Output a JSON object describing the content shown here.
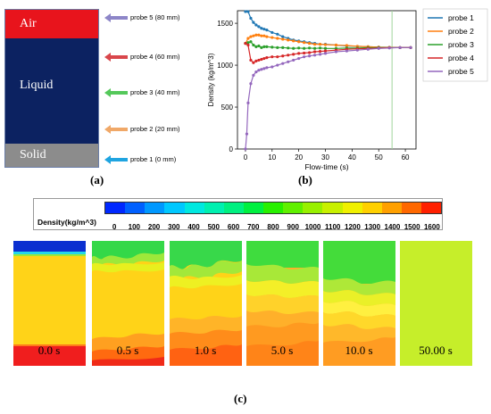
{
  "panel_a": {
    "layers": [
      {
        "name": "Air",
        "color": "#e8141c"
      },
      {
        "name": "Liquid",
        "color": "#0c2261"
      },
      {
        "name": "Solid",
        "color": "#8c8c8c"
      }
    ],
    "probes": [
      {
        "label": "probe 5 (80 mm)",
        "color": "#8d86c8"
      },
      {
        "label": "probe 4 (60 mm)",
        "color": "#d9464b"
      },
      {
        "label": "probe 3 (40 mm)",
        "color": "#54c85a"
      },
      {
        "label": "probe 2 (20 mm)",
        "color": "#f0a868"
      },
      {
        "label": "probe 1 (0 mm)",
        "color": "#1fa4e0"
      }
    ],
    "caption": "(a)"
  },
  "chart_data": {
    "type": "line",
    "xlabel": "Flow-time (s)",
    "ylabel": "Density (kg/m^3)",
    "xlim": [
      -3,
      64
    ],
    "ylim": [
      0,
      1650
    ],
    "xticks": [
      0,
      10,
      20,
      30,
      40,
      50,
      60
    ],
    "yticks": [
      0,
      500,
      1000,
      1500
    ],
    "vline_x": 55,
    "vline_color": "#9fd49a",
    "legend_placement": "right",
    "series": [
      {
        "name": "probe 1",
        "color": "#1f77b4",
        "x": [
          0,
          1,
          2,
          3,
          4,
          5,
          6,
          7,
          8,
          10,
          12,
          14,
          16,
          18,
          20,
          22,
          24,
          26,
          28,
          30,
          34,
          38,
          42,
          46,
          50,
          54,
          58,
          62
        ],
        "y": [
          1640,
          1640,
          1560,
          1510,
          1480,
          1460,
          1440,
          1430,
          1420,
          1390,
          1370,
          1340,
          1320,
          1300,
          1290,
          1280,
          1270,
          1260,
          1250,
          1250,
          1240,
          1230,
          1225,
          1220,
          1215,
          1212,
          1210,
          1210
        ]
      },
      {
        "name": "probe 2",
        "color": "#ff7f0e",
        "x": [
          0,
          1,
          2,
          3,
          4,
          5,
          6,
          7,
          8,
          10,
          12,
          14,
          16,
          18,
          20,
          22,
          24,
          26,
          28,
          30,
          34,
          38,
          42,
          46,
          50,
          54,
          58,
          62
        ],
        "y": [
          1260,
          1320,
          1340,
          1350,
          1360,
          1360,
          1350,
          1350,
          1340,
          1330,
          1320,
          1310,
          1300,
          1290,
          1280,
          1270,
          1260,
          1250,
          1250,
          1245,
          1240,
          1235,
          1225,
          1220,
          1215,
          1212,
          1210,
          1210
        ]
      },
      {
        "name": "probe 3",
        "color": "#2ca02c",
        "x": [
          0,
          1,
          2,
          3,
          4,
          5,
          6,
          7,
          8,
          10,
          12,
          14,
          16,
          18,
          20,
          22,
          24,
          26,
          28,
          30,
          34,
          38,
          42,
          46,
          50,
          54,
          58,
          62
        ],
        "y": [
          1260,
          1270,
          1280,
          1240,
          1220,
          1230,
          1210,
          1220,
          1220,
          1215,
          1210,
          1210,
          1205,
          1200,
          1205,
          1200,
          1205,
          1200,
          1205,
          1200,
          1200,
          1205,
          1205,
          1208,
          1210,
          1210,
          1210,
          1210
        ]
      },
      {
        "name": "probe 4",
        "color": "#d62728",
        "x": [
          0,
          1,
          2,
          3,
          4,
          5,
          6,
          7,
          8,
          10,
          12,
          14,
          16,
          18,
          20,
          22,
          24,
          26,
          28,
          30,
          34,
          38,
          42,
          46,
          50,
          54,
          58,
          62
        ],
        "y": [
          1260,
          1240,
          1060,
          1030,
          1050,
          1060,
          1070,
          1080,
          1090,
          1100,
          1100,
          1110,
          1120,
          1130,
          1140,
          1145,
          1150,
          1160,
          1165,
          1170,
          1180,
          1190,
          1195,
          1200,
          1205,
          1208,
          1210,
          1210
        ]
      },
      {
        "name": "probe 5",
        "color": "#9467bd",
        "x": [
          0,
          0.5,
          1,
          2,
          3,
          4,
          5,
          6,
          7,
          8,
          10,
          12,
          14,
          16,
          18,
          20,
          22,
          24,
          26,
          28,
          30,
          34,
          38,
          42,
          46,
          50,
          54,
          58,
          62
        ],
        "y": [
          0,
          180,
          550,
          780,
          880,
          920,
          940,
          950,
          960,
          970,
          980,
          1000,
          1020,
          1040,
          1060,
          1080,
          1100,
          1110,
          1120,
          1130,
          1140,
          1160,
          1170,
          1180,
          1190,
          1200,
          1205,
          1210,
          1210
        ]
      }
    ],
    "caption": "(b)"
  },
  "panel_c": {
    "colorbar_title": "Density(kg/m^3)",
    "colorbar_ticks": [
      "0",
      "100",
      "200",
      "300",
      "400",
      "500",
      "600",
      "700",
      "800",
      "900",
      "1000",
      "1100",
      "1200",
      "1300",
      "1400",
      "1500",
      "1600"
    ],
    "colorbar_colors": [
      "#0028ff",
      "#0060ff",
      "#0098ff",
      "#00c8ff",
      "#00e8e0",
      "#00f0b0",
      "#00f080",
      "#00f040",
      "#28f000",
      "#60f000",
      "#98f000",
      "#c8f000",
      "#f0f000",
      "#ffd000",
      "#ffa000",
      "#ff6800",
      "#ff2000"
    ],
    "snapshots": [
      {
        "time": "0.0 s"
      },
      {
        "time": "0.5 s"
      },
      {
        "time": "1.0 s"
      },
      {
        "time": "5.0 s"
      },
      {
        "time": "10.0 s"
      },
      {
        "time": "50.00 s"
      }
    ],
    "caption": "(c)"
  }
}
